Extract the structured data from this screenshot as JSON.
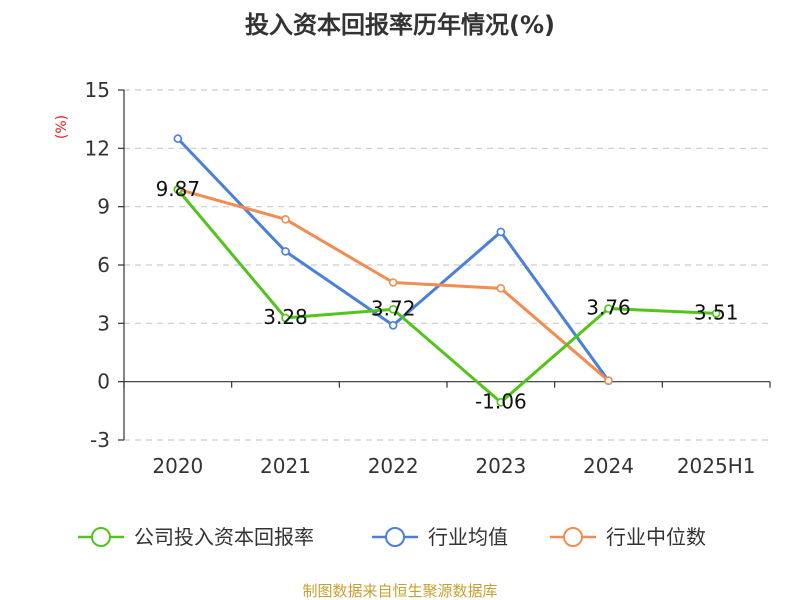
{
  "title": "投入资本回报率历年情况(%)",
  "source": "制图数据来自恒生聚源数据库",
  "chart_data": {
    "type": "line",
    "title": "投入资本回报率历年情况(%)",
    "ylabel": "(%)",
    "xlabel": "",
    "categories": [
      "2020",
      "2021",
      "2022",
      "2023",
      "2024",
      "2025H1"
    ],
    "ylim": [
      -3,
      15
    ],
    "yticks": [
      15,
      12,
      9,
      6,
      3,
      0,
      -3
    ],
    "grid": true,
    "legend_position": "bottom",
    "series": [
      {
        "name": "公司投入资本回报率",
        "color": "#52c41a",
        "values": [
          9.87,
          3.28,
          3.72,
          -1.06,
          3.76,
          3.51
        ],
        "labels": [
          "9.87",
          "3.28",
          "3.72",
          "-1.06",
          "3.76",
          "3.51"
        ]
      },
      {
        "name": "行业均值",
        "color": "#4a7fdb",
        "values": [
          12.5,
          6.7,
          2.9,
          7.7,
          0.05,
          null
        ]
      },
      {
        "name": "行业中位数",
        "color": "#f28c50",
        "values": [
          9.9,
          8.35,
          5.1,
          4.8,
          0.05,
          null
        ]
      }
    ]
  }
}
